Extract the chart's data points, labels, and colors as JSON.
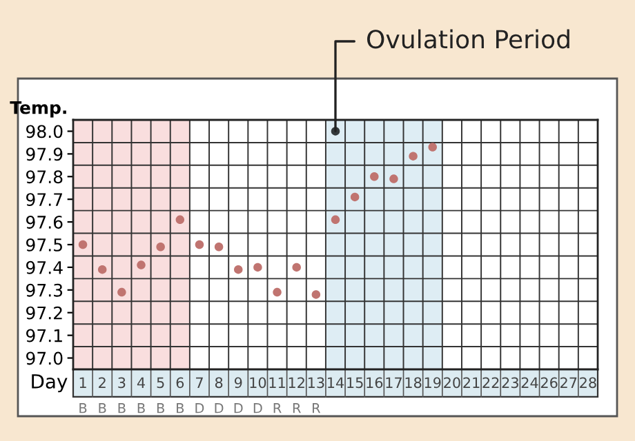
{
  "chart_data": {
    "type": "scatter",
    "ylabel": "Temp.",
    "xlabel": "Day",
    "categories": [
      "1",
      "2",
      "3",
      "4",
      "5",
      "6",
      "7",
      "8",
      "9",
      "10",
      "11",
      "12",
      "13",
      "14",
      "15",
      "16",
      "17",
      "18",
      "19",
      "20",
      "21",
      "22",
      "23",
      "24",
      "26",
      "27",
      "28"
    ],
    "series": [
      {
        "color": "#c07470",
        "x": [
          "1",
          "2",
          "3",
          "4",
          "5",
          "6",
          "7",
          "8",
          "9",
          "10",
          "11",
          "12",
          "13",
          "14",
          "15",
          "16",
          "17",
          "18",
          "19"
        ],
        "values": [
          97.5,
          97.39,
          97.29,
          97.41,
          97.49,
          97.61,
          97.5,
          97.49,
          97.39,
          97.4,
          97.29,
          97.4,
          97.28,
          97.61,
          97.71,
          97.8,
          97.79,
          97.89,
          97.93
        ]
      },
      {
        "color": "#33383a",
        "x": [
          "14"
        ],
        "values": [
          98.0
        ]
      }
    ],
    "marker": "circle",
    "ylim": [
      96.95,
      98.05
    ],
    "yticks": [
      {
        "value": 97.0,
        "label": "97.0"
      },
      97.1,
      97.2,
      97.3,
      97.4,
      97.5,
      97.6,
      97.7,
      97.8,
      97.9,
      {
        "value": 98.0,
        "label": "98.0"
      }
    ],
    "grid": true,
    "bands": [
      {
        "axis": "x",
        "from": "1",
        "to": "6",
        "color": "#f9dede"
      },
      {
        "axis": "x",
        "from": "14",
        "to": "19",
        "color": "#deedf4"
      }
    ],
    "annotations": [
      {
        "text": "Ovulation Period",
        "x": "14",
        "y": 98.0
      },
      "B",
      "B",
      "B",
      "B",
      "B",
      "B",
      "D",
      "D",
      "D",
      "D",
      "R",
      "R",
      "R"
    ]
  }
}
